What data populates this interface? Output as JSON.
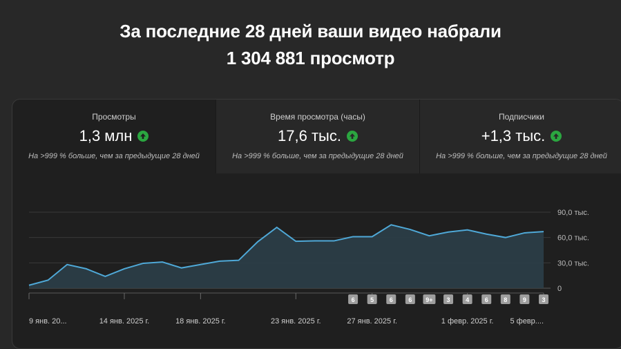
{
  "headline": {
    "line1": "За последние 28 дней ваши видео набрали",
    "line2": "1 304 881 просмотр"
  },
  "tabs": [
    {
      "title": "Просмотры",
      "value": "1,3 млн",
      "subtitle": "На >999 % больше, чем за предыдущие 28 дней"
    },
    {
      "title": "Время просмотра (часы)",
      "value": "17,6 тыс.",
      "subtitle": "На >999 % больше, чем за предыдущие 28 дней"
    },
    {
      "title": "Подписчики",
      "value": "+1,3 тыс.",
      "subtitle": "На >999 % больше, чем за предыдущие 28 дней"
    }
  ],
  "colors": {
    "line": "#4fa9d8",
    "area": "#2b3e48",
    "up_icon": "#2ba640",
    "badge": "#9e9e9e"
  },
  "chart_data": {
    "type": "area",
    "x": [
      "9 янв.",
      "10 янв.",
      "11 янв.",
      "12 янв.",
      "13 янв.",
      "14 янв.",
      "15 янв.",
      "16 янв.",
      "17 янв.",
      "18 янв.",
      "19 янв.",
      "20 янв.",
      "21 янв.",
      "22 янв.",
      "23 янв.",
      "24 янв.",
      "25 янв.",
      "26 янв.",
      "27 янв.",
      "28 янв.",
      "29 янв.",
      "30 янв.",
      "31 янв.",
      "1 февр.",
      "2 февр.",
      "3 февр.",
      "4 февр.",
      "5 февр."
    ],
    "values": [
      3500,
      9500,
      28000,
      23000,
      14000,
      23000,
      29500,
      31000,
      24000,
      28000,
      32000,
      33000,
      55000,
      72000,
      55500,
      56000,
      56000,
      61000,
      61000,
      75000,
      69500,
      62000,
      66500,
      69000,
      64000,
      60000,
      65500,
      67000
    ],
    "ylim": [
      0,
      90000
    ],
    "y_tick_labels": [
      "90,0 тыс.",
      "60,0 тыс.",
      "30,0 тыс.",
      "0"
    ],
    "x_tick_labels": [
      "9 янв. 20...",
      "14 янв. 2025 г.",
      "18 янв. 2025 г.",
      "23 янв. 2025 г.",
      "27 янв. 2025 г.",
      "1 февр. 2025 г.",
      "5 февр...."
    ],
    "x_tick_index": [
      0,
      5,
      9,
      14,
      18,
      23,
      27
    ],
    "badges": [
      "6",
      "5",
      "6",
      "6",
      "9+",
      "3",
      "4",
      "6",
      "8",
      "9",
      "3"
    ],
    "badge_index": [
      17,
      18,
      19,
      20,
      21,
      22,
      23,
      24,
      25,
      26,
      27
    ],
    "grid": true
  }
}
